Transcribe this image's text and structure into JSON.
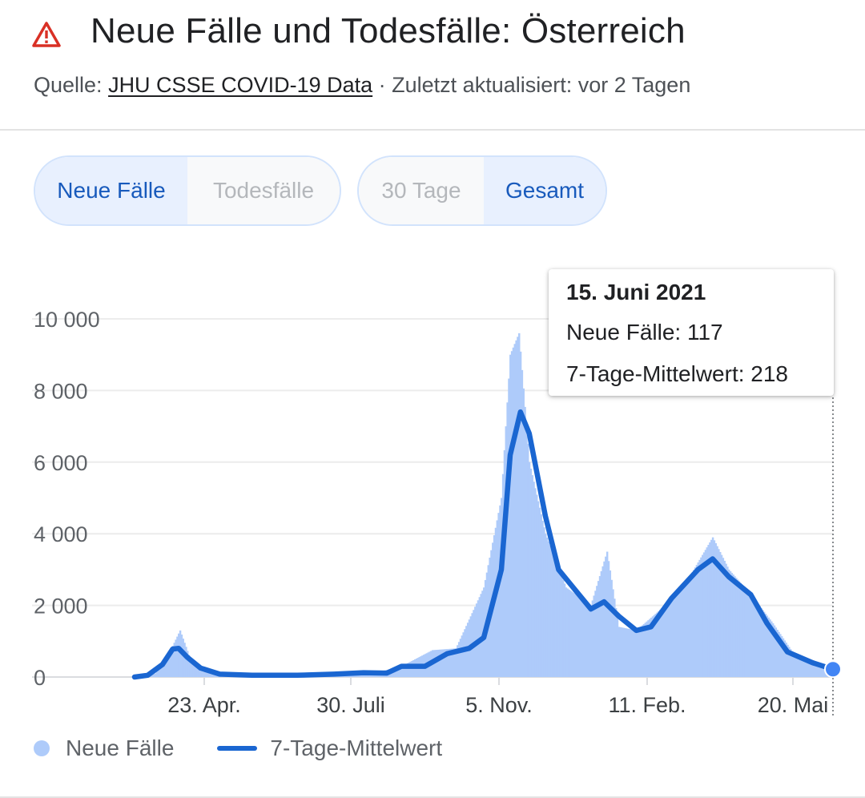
{
  "header": {
    "title": "Neue Fälle und Todesfälle: Österreich",
    "source_prefix": "Quelle: ",
    "source_link": "JHU CSSE COVID-19 Data",
    "source_suffix": " · Zuletzt aktualisiert: vor 2 Tagen",
    "icon": "warning-triangle-icon",
    "icon_color": "#d93025"
  },
  "toggles": {
    "metric": {
      "options": [
        "Neue Fälle",
        "Todesfälle"
      ],
      "selected": "Neue Fälle"
    },
    "range": {
      "options": [
        "30 Tage",
        "Gesamt"
      ],
      "selected": "Gesamt"
    }
  },
  "tooltip": {
    "date": "15. Juni 2021",
    "new_cases": "Neue Fälle: 117",
    "avg": "7-Tage-Mittelwert: 218"
  },
  "legend": {
    "new_cases": "Neue Fälle",
    "avg": "7-Tage-Mittelwert"
  },
  "colors": {
    "bars": "#aecbfa",
    "line": "#1a66d1",
    "selected_text": "#185abc",
    "selected_bg": "#e8f0fe"
  },
  "chart_data": {
    "type": "bar",
    "x_start": "2020-02-25",
    "x_end": "2021-06-15",
    "ylim": [
      0,
      10000
    ],
    "y_ticks": [
      "0",
      "2 000",
      "4 000",
      "6 000",
      "8 000",
      "10 000"
    ],
    "x_ticks": [
      "23. Apr.",
      "30. Juli",
      "5. Nov.",
      "11. Feb.",
      "20. Mai"
    ],
    "grid": true,
    "legend_position": "bottom",
    "series": [
      {
        "name": "Neue Fälle",
        "kind": "bar",
        "points": [
          [
            "2020-02-25",
            0
          ],
          [
            "2020-03-10",
            100
          ],
          [
            "2020-03-20",
            700
          ],
          [
            "2020-03-27",
            1300
          ],
          [
            "2020-04-03",
            500
          ],
          [
            "2020-04-15",
            150
          ],
          [
            "2020-05-01",
            70
          ],
          [
            "2020-05-20",
            40
          ],
          [
            "2020-06-10",
            40
          ],
          [
            "2020-07-01",
            80
          ],
          [
            "2020-07-20",
            130
          ],
          [
            "2020-08-10",
            150
          ],
          [
            "2020-08-25",
            300
          ],
          [
            "2020-09-15",
            750
          ],
          [
            "2020-10-01",
            800
          ],
          [
            "2020-10-20",
            2500
          ],
          [
            "2020-11-01",
            5000
          ],
          [
            "2020-11-07",
            9000
          ],
          [
            "2020-11-13",
            9600
          ],
          [
            "2020-11-20",
            6000
          ],
          [
            "2020-12-01",
            4000
          ],
          [
            "2020-12-15",
            2500
          ],
          [
            "2021-01-01",
            2000
          ],
          [
            "2021-01-12",
            3500
          ],
          [
            "2021-01-20",
            1400
          ],
          [
            "2021-02-01",
            1300
          ],
          [
            "2021-02-15",
            1800
          ],
          [
            "2021-03-05",
            2500
          ],
          [
            "2021-03-25",
            3900
          ],
          [
            "2021-04-05",
            3000
          ],
          [
            "2021-04-20",
            2300
          ],
          [
            "2021-05-05",
            1500
          ],
          [
            "2021-05-20",
            600
          ],
          [
            "2021-06-05",
            300
          ],
          [
            "2021-06-15",
            117
          ]
        ]
      },
      {
        "name": "7-Tage-Mittelwert",
        "kind": "line",
        "points": [
          [
            "2020-02-25",
            0
          ],
          [
            "2020-03-05",
            50
          ],
          [
            "2020-03-15",
            350
          ],
          [
            "2020-03-22",
            780
          ],
          [
            "2020-03-26",
            800
          ],
          [
            "2020-04-01",
            550
          ],
          [
            "2020-04-10",
            250
          ],
          [
            "2020-04-23",
            80
          ],
          [
            "2020-05-15",
            50
          ],
          [
            "2020-06-15",
            50
          ],
          [
            "2020-07-10",
            80
          ],
          [
            "2020-07-30",
            120
          ],
          [
            "2020-08-15",
            110
          ],
          [
            "2020-08-25",
            300
          ],
          [
            "2020-09-10",
            300
          ],
          [
            "2020-09-25",
            650
          ],
          [
            "2020-10-10",
            800
          ],
          [
            "2020-10-20",
            1100
          ],
          [
            "2020-11-01",
            3000
          ],
          [
            "2020-11-07",
            6200
          ],
          [
            "2020-11-14",
            7400
          ],
          [
            "2020-11-20",
            6800
          ],
          [
            "2020-12-01",
            4500
          ],
          [
            "2020-12-10",
            3000
          ],
          [
            "2020-12-20",
            2500
          ],
          [
            "2021-01-01",
            1900
          ],
          [
            "2021-01-10",
            2100
          ],
          [
            "2021-01-20",
            1700
          ],
          [
            "2021-02-01",
            1300
          ],
          [
            "2021-02-11",
            1400
          ],
          [
            "2021-02-25",
            2200
          ],
          [
            "2021-03-15",
            3000
          ],
          [
            "2021-03-25",
            3300
          ],
          [
            "2021-04-05",
            2800
          ],
          [
            "2021-04-20",
            2300
          ],
          [
            "2021-05-01",
            1500
          ],
          [
            "2021-05-15",
            700
          ],
          [
            "2021-06-01",
            400
          ],
          [
            "2021-06-15",
            218
          ]
        ]
      }
    ]
  }
}
